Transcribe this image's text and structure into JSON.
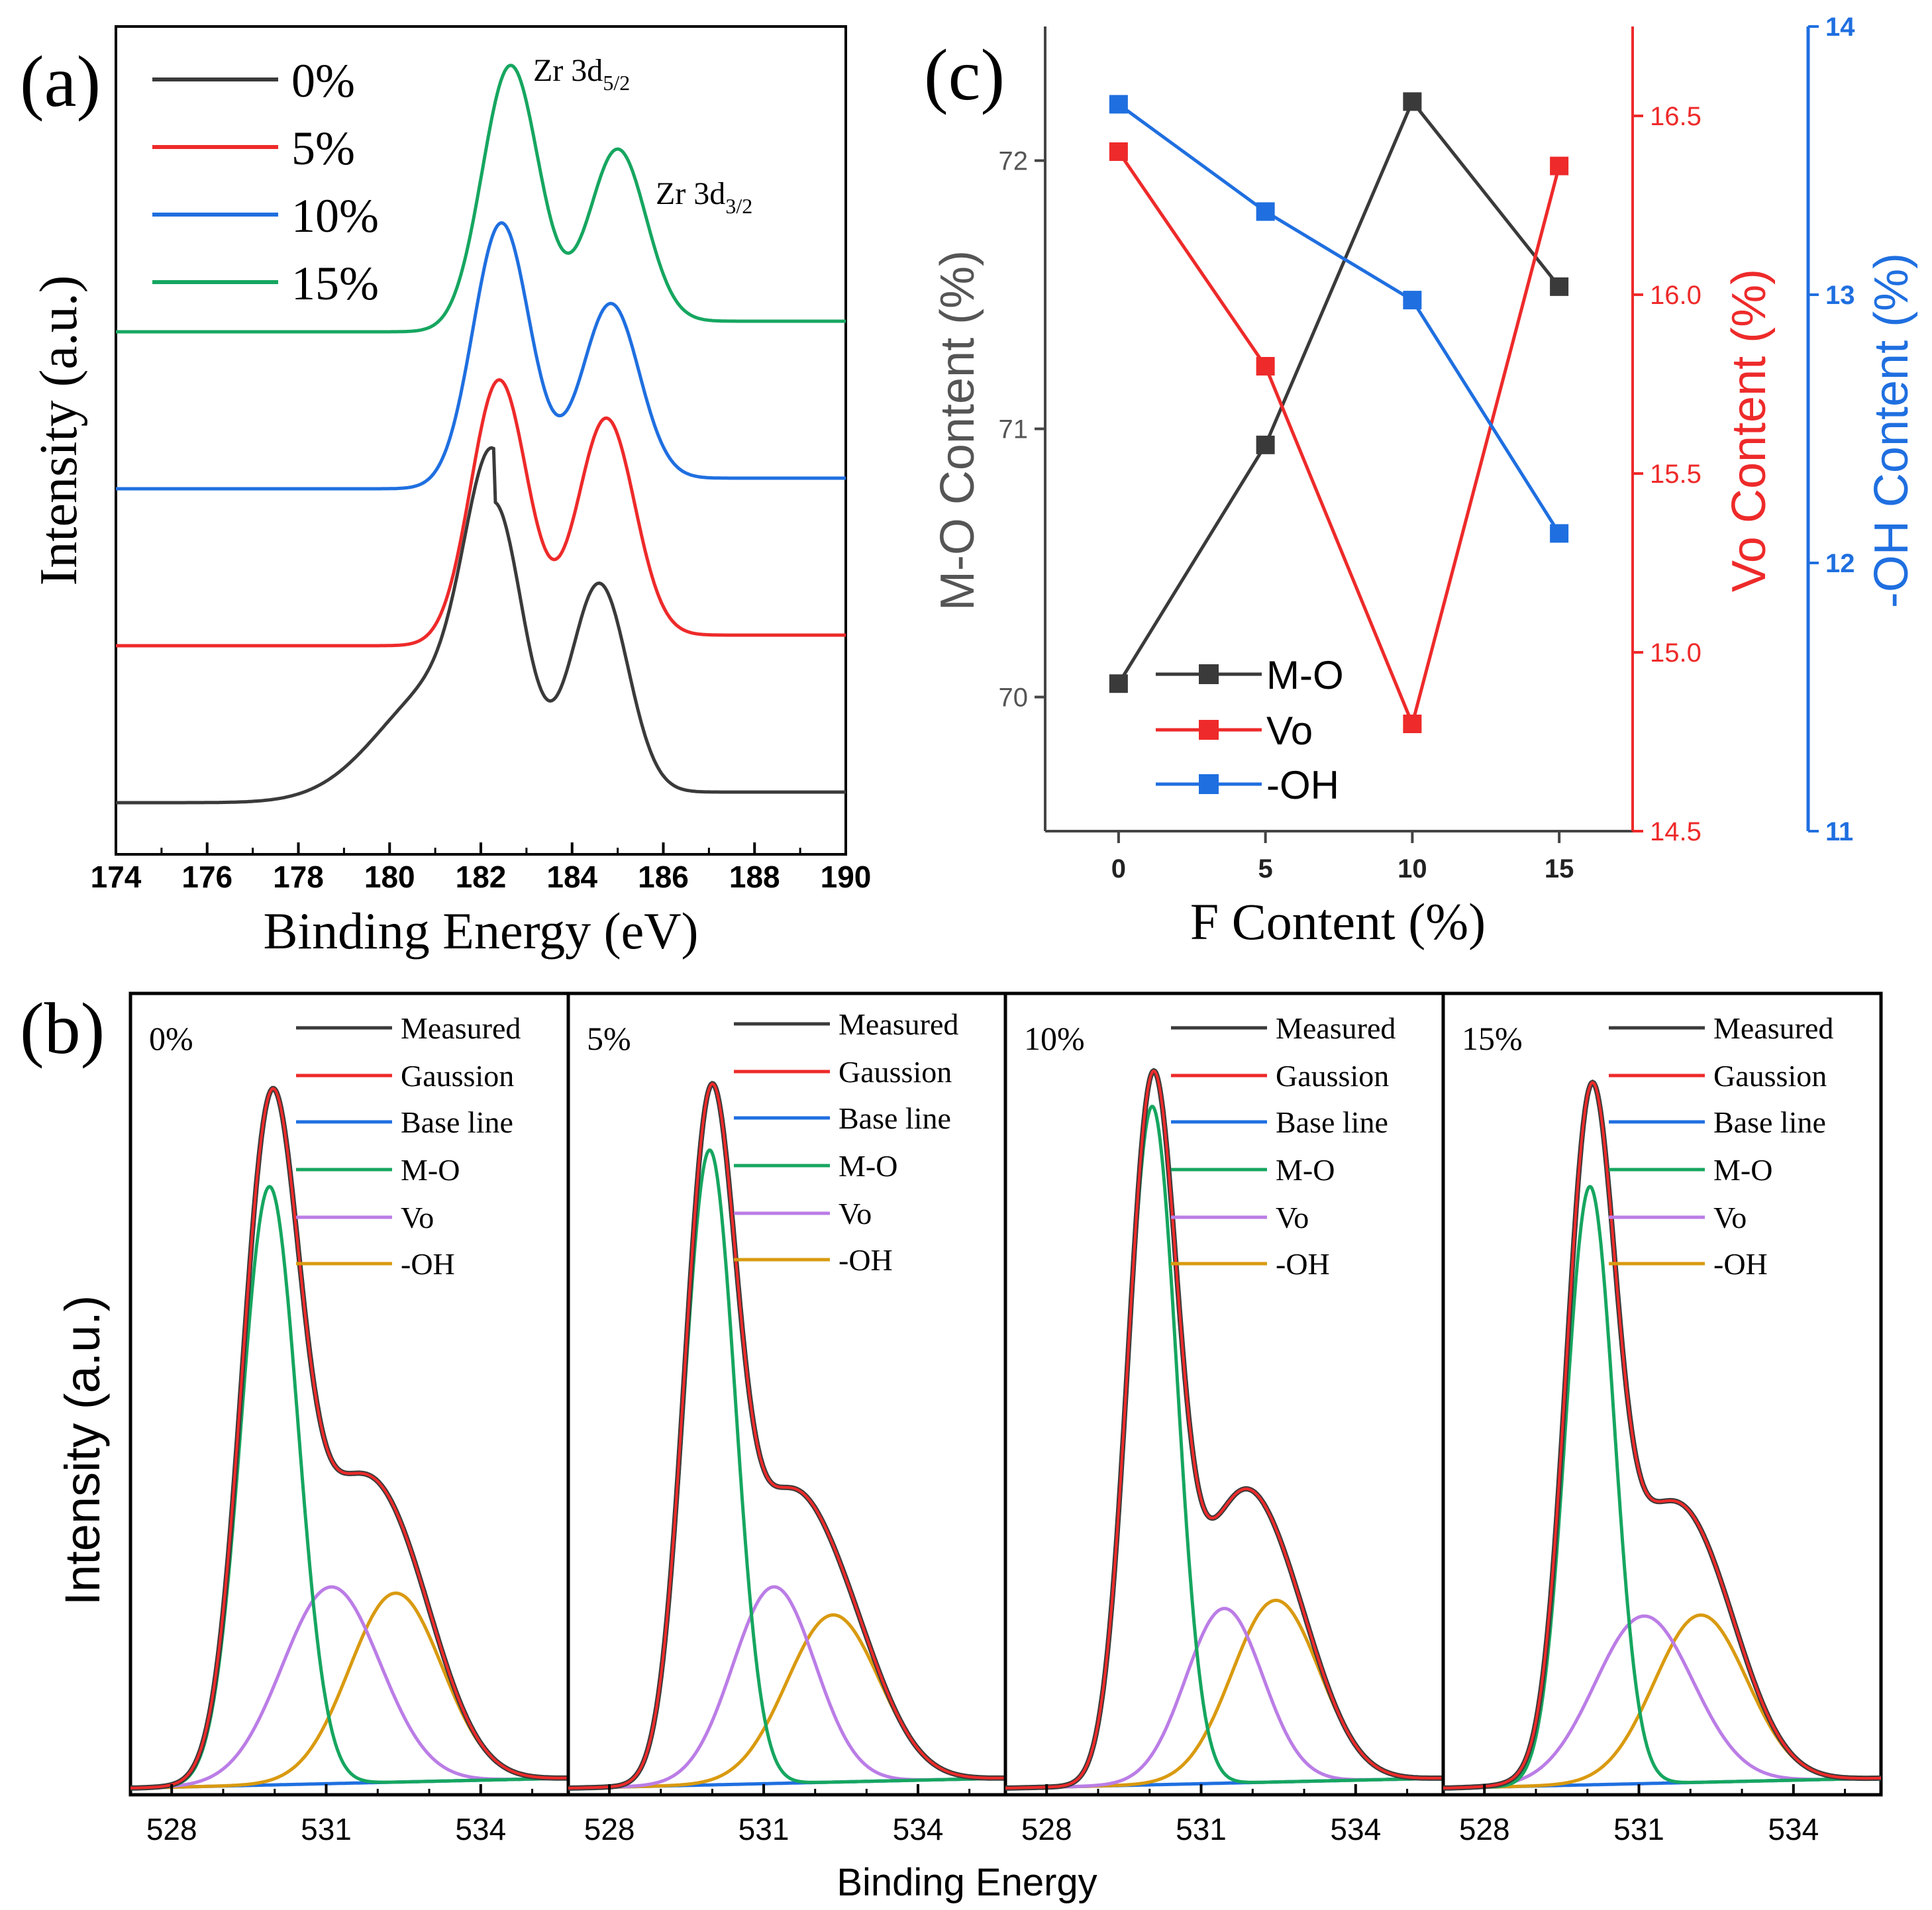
{
  "colors": {
    "black": "#3a3a3a",
    "red": "#ee2a2a",
    "blue": "#1f6fe0",
    "green": "#16a660",
    "violet": "#bb7de6",
    "orange": "#d99a10",
    "mo": "#3a3a3a",
    "vo": "#ee2a2a",
    "oh": "#1f6fe0"
  },
  "chart_data": [
    {
      "id": "a",
      "panel_label": "(a)",
      "type": "line",
      "xlabel": "Binding Energy (eV)",
      "ylabel": "Intensity (a.u.)",
      "xlim": [
        174,
        190
      ],
      "xticks": [
        "174",
        "176",
        "178",
        "180",
        "182",
        "184",
        "186",
        "188",
        "190"
      ],
      "annotations": {
        "peak1": {
          "main": "Zr 3d",
          "sub": "5/2"
        },
        "peak2": {
          "main": "Zr 3d",
          "sub": "3/2"
        }
      },
      "legend_position": "top-left",
      "series": [
        {
          "name": "0%",
          "color": "#3a3a3a",
          "offset": 0,
          "p1_center": 182.3,
          "p1_height": 1.0,
          "p2_center": 184.6,
          "p2_height": 0.78
        },
        {
          "name": "5%",
          "color": "#ee2a2a",
          "offset": 1,
          "p1_center": 182.4,
          "p1_height": 1.0,
          "p2_center": 184.75,
          "p2_height": 0.82
        },
        {
          "name": "10%",
          "color": "#1f6fe0",
          "offset": 2,
          "p1_center": 182.45,
          "p1_height": 1.0,
          "p2_center": 184.85,
          "p2_height": 0.66
        },
        {
          "name": "15%",
          "color": "#16a660",
          "offset": 3,
          "p1_center": 182.65,
          "p1_height": 1.0,
          "p2_center": 185.0,
          "p2_height": 0.65
        }
      ]
    },
    {
      "id": "c",
      "panel_label": "(c)",
      "type": "line",
      "xlabel": "F Content (%)",
      "x": [
        0,
        5,
        10,
        15
      ],
      "xticks": [
        "0",
        "5",
        "10",
        "15"
      ],
      "xlim": [
        -2.5,
        17.5
      ],
      "legend_position": "bottom-left",
      "axes": {
        "mo": {
          "label": "M-O Content (%)",
          "ylim": [
            69.5,
            72.5
          ],
          "ticks": [
            "70",
            "71",
            "72"
          ],
          "color": "#3a3a3a"
        },
        "vo": {
          "label": "Vo Content (%)",
          "ylim": [
            14.5,
            16.75
          ],
          "ticks": [
            "14.5",
            "15.0",
            "15.5",
            "16.0",
            "16.5"
          ],
          "color": "#ee2a2a"
        },
        "oh": {
          "label": "-OH Content (%)",
          "ylim": [
            11,
            14
          ],
          "ticks": [
            "11",
            "12",
            "13",
            "14"
          ],
          "color": "#1f6fe0"
        }
      },
      "series": [
        {
          "name": "M-O",
          "axis": "mo",
          "color": "#3a3a3a",
          "values": [
            70.05,
            70.94,
            72.22,
            71.53
          ]
        },
        {
          "name": "Vo",
          "axis": "vo",
          "color": "#ee2a2a",
          "values": [
            16.4,
            15.8,
            14.8,
            16.36
          ]
        },
        {
          "name": "-OH",
          "axis": "oh",
          "color": "#1f6fe0",
          "values": [
            13.71,
            13.31,
            12.98,
            12.11
          ]
        }
      ]
    },
    {
      "id": "b",
      "panel_label": "(b)",
      "type": "line",
      "xlabel": "Binding Energy",
      "ylabel": "Intensity (a.u.)",
      "xlim": [
        527.2,
        535.7
      ],
      "xticks": [
        "528",
        "531",
        "534"
      ],
      "legend_entries": [
        {
          "name": "Measured",
          "color": "#3a3a3a"
        },
        {
          "name": "Gaussion",
          "color": "#ee2a2a"
        },
        {
          "name": "Base line",
          "color": "#1f6fe0"
        },
        {
          "name": "M-O",
          "color": "#16a660"
        },
        {
          "name": "Vo",
          "color": "#bb7de6"
        },
        {
          "name": "-OH",
          "color": "#d99a10"
        }
      ],
      "panels": [
        {
          "label": "0%",
          "mo": {
            "c": 529.9,
            "h": 0.82,
            "w": 0.55
          },
          "vo": {
            "c": 531.1,
            "h": 0.27,
            "w": 0.95
          },
          "oh": {
            "c": 532.35,
            "h": 0.26,
            "w": 0.9
          }
        },
        {
          "label": "5%",
          "mo": {
            "c": 529.95,
            "h": 0.87,
            "w": 0.5
          },
          "vo": {
            "c": 531.2,
            "h": 0.27,
            "w": 0.8
          },
          "oh": {
            "c": 532.35,
            "h": 0.23,
            "w": 0.9
          }
        },
        {
          "label": "10%",
          "mo": {
            "c": 530.05,
            "h": 0.93,
            "w": 0.48
          },
          "vo": {
            "c": 531.45,
            "h": 0.24,
            "w": 0.75
          },
          "oh": {
            "c": 532.45,
            "h": 0.25,
            "w": 0.85
          }
        },
        {
          "label": "15%",
          "mo": {
            "c": 530.05,
            "h": 0.82,
            "w": 0.47
          },
          "vo": {
            "c": 531.1,
            "h": 0.23,
            "w": 0.95
          },
          "oh": {
            "c": 532.2,
            "h": 0.23,
            "w": 0.9
          }
        }
      ]
    }
  ]
}
